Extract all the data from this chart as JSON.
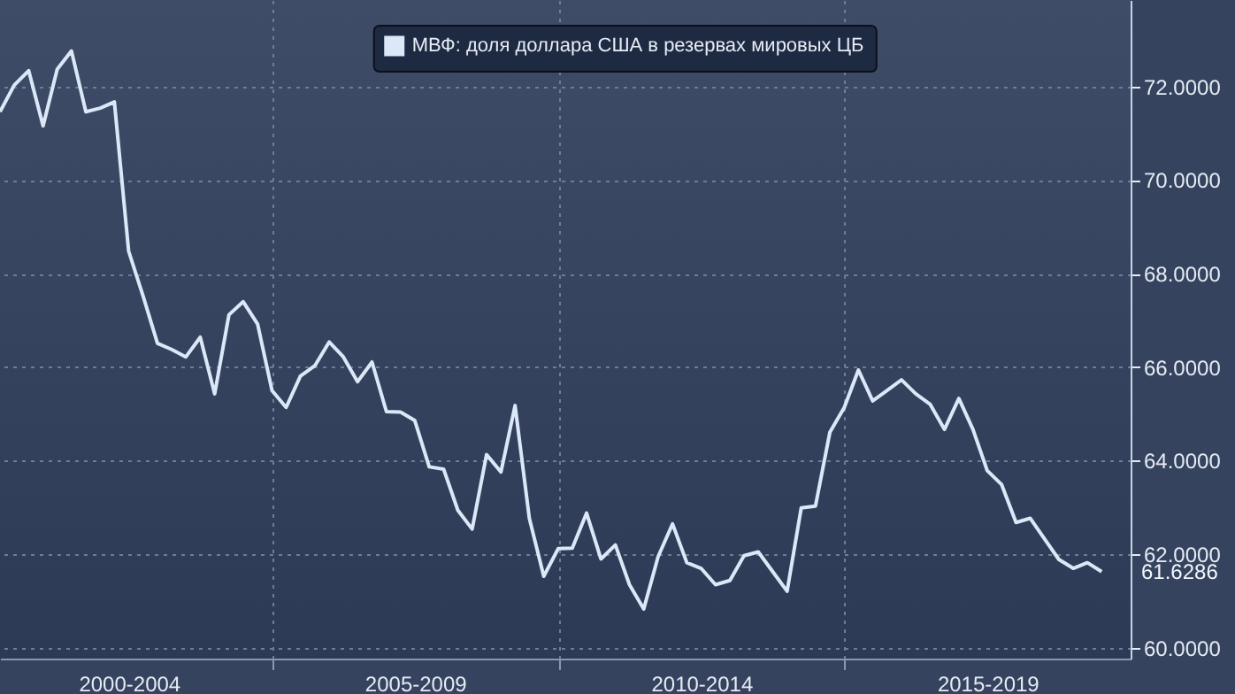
{
  "chart_data": {
    "type": "line",
    "x": [
      "2000-03-31",
      "2000-06-30",
      "2000-09-30",
      "2000-12-31",
      "2001-03-31",
      "2001-06-30",
      "2001-09-30",
      "2001-12-31",
      "2002-03-31",
      "2002-06-30",
      "2002-09-30",
      "2002-12-31",
      "2003-03-31",
      "2003-06-30",
      "2003-09-30",
      "2003-12-31",
      "2004-03-31",
      "2004-06-30",
      "2004-09-30",
      "2004-12-31",
      "2005-03-31",
      "2005-06-30",
      "2005-09-30",
      "2005-12-31",
      "2006-03-31",
      "2006-06-30",
      "2006-09-30",
      "2006-12-31",
      "2007-03-31",
      "2007-06-30",
      "2007-09-30",
      "2007-12-31",
      "2008-03-31",
      "2008-06-30",
      "2008-09-30",
      "2008-12-31",
      "2009-03-31",
      "2009-06-30",
      "2009-09-30",
      "2009-12-31",
      "2010-03-31",
      "2010-06-30",
      "2010-09-30",
      "2010-12-31",
      "2011-03-31",
      "2011-06-30",
      "2011-09-30",
      "2011-12-31",
      "2012-03-31",
      "2012-06-30",
      "2012-09-30",
      "2012-12-31",
      "2013-03-31",
      "2013-06-30",
      "2013-09-30",
      "2013-12-31",
      "2014-03-31",
      "2014-06-30",
      "2014-09-30",
      "2014-12-31",
      "2015-03-31",
      "2015-06-30",
      "2015-09-30",
      "2015-12-31",
      "2016-03-31",
      "2016-06-30",
      "2016-09-30",
      "2016-12-31",
      "2017-03-31",
      "2017-06-30",
      "2017-09-30",
      "2017-12-31",
      "2018-03-31",
      "2018-06-30",
      "2018-09-30",
      "2018-12-31",
      "2019-03-31",
      "2019-06-30"
    ],
    "series": [
      {
        "name": "МВФ: доля доллара США в резервах мировых ЦБ",
        "color": "#dce8f8",
        "values": [
          71.46,
          72.03,
          72.34,
          71.16,
          72.37,
          72.76,
          71.46,
          71.54,
          71.67,
          68.48,
          67.52,
          66.51,
          66.38,
          66.22,
          66.64,
          65.43,
          67.12,
          67.4,
          66.92,
          65.5,
          65.14,
          65.81,
          66.03,
          66.54,
          66.22,
          65.69,
          66.11,
          65.05,
          65.04,
          64.86,
          63.87,
          63.82,
          62.94,
          62.54,
          64.13,
          63.76,
          65.18,
          62.77,
          61.53,
          62.12,
          62.13,
          62.88,
          61.9,
          62.2,
          61.35,
          60.83,
          61.95,
          62.65,
          61.82,
          61.7,
          61.35,
          61.44,
          61.97,
          62.05,
          61.63,
          61.21,
          62.99,
          63.03,
          64.61,
          65.14,
          65.94,
          65.28,
          65.5,
          65.73,
          65.43,
          65.21,
          64.67,
          65.33,
          64.67,
          63.79,
          63.49,
          62.68,
          62.77,
          62.33,
          61.89,
          61.7,
          61.82,
          61.6286
        ],
        "value_labels": [
          null,
          null,
          null,
          null,
          null,
          null,
          null,
          null,
          null,
          null,
          null,
          null,
          null,
          null,
          null,
          null,
          null,
          null,
          null,
          null,
          null,
          null,
          null,
          null,
          null,
          null,
          null,
          null,
          null,
          null,
          null,
          null,
          null,
          null,
          null,
          null,
          null,
          null,
          null,
          null,
          null,
          null,
          null,
          null,
          null,
          null,
          null,
          null,
          null,
          null,
          null,
          null,
          null,
          null,
          null,
          null,
          null,
          null,
          null,
          null,
          null,
          null,
          null,
          null,
          null,
          null,
          null,
          null,
          null,
          null,
          null,
          null,
          null,
          null,
          null,
          null,
          null,
          "61.6286"
        ]
      }
    ],
    "xlim": [
      "2000-03-31",
      "2020-01-01"
    ],
    "xticks": [
      {
        "value": "2002-07-02",
        "label": "2000-2004"
      },
      {
        "value": "2005-01-01",
        "label": null
      },
      {
        "value": "2007-07-02",
        "label": "2005-2009"
      },
      {
        "value": "2010-01-01",
        "label": null
      },
      {
        "value": "2012-07-02",
        "label": "2010-2014"
      },
      {
        "value": "2015-01-01",
        "label": null
      },
      {
        "value": "2017-07-02",
        "label": "2015-2019"
      }
    ],
    "ylim": [
      59.77,
      73.85
    ],
    "yticks": [
      {
        "value": 60,
        "label": "60.0000"
      },
      {
        "value": 62,
        "label": "62.0000"
      },
      {
        "value": 64,
        "label": "64.0000"
      },
      {
        "value": 66,
        "label": "66.0000"
      },
      {
        "value": 68,
        "label": "68.0000"
      },
      {
        "value": 70,
        "label": "70.0000"
      },
      {
        "value": 72,
        "label": "72.0000"
      }
    ],
    "grid": true,
    "legend": "top",
    "line_style": "solid",
    "marker": "none"
  }
}
